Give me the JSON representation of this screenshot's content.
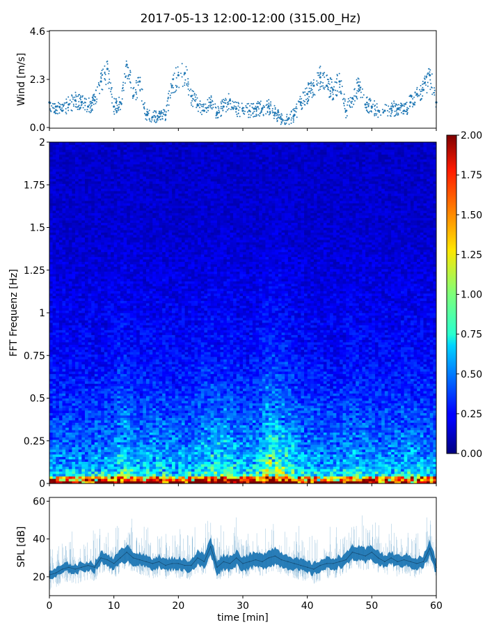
{
  "title": "2017-05-13 12:00-12:00 (315.00_Hz)",
  "chart_data": [
    {
      "id": "wind",
      "type": "scatter",
      "ylabel": "Wind [m/s]",
      "xlim": [
        0,
        60
      ],
      "ylim": [
        0,
        4.6
      ],
      "yticks": [
        0.0,
        2.3,
        4.6
      ],
      "ytick_labels": [
        "0.0",
        "2.3",
        "4.6"
      ],
      "color": "#1f77b4",
      "x": [
        0,
        1,
        2,
        3,
        4,
        5,
        6,
        7,
        8,
        9,
        10,
        11,
        12,
        13,
        14,
        15,
        16,
        17,
        18,
        19,
        20,
        21,
        22,
        23,
        24,
        25,
        26,
        27,
        28,
        29,
        30,
        31,
        32,
        33,
        34,
        35,
        36,
        37,
        38,
        39,
        40,
        41,
        42,
        43,
        44,
        45,
        46,
        47,
        48,
        49,
        50,
        51,
        52,
        53,
        54,
        55,
        56,
        57,
        58,
        59,
        60
      ],
      "y": [
        1.2,
        1.0,
        0.8,
        1.1,
        1.3,
        1.2,
        1.0,
        1.3,
        2.2,
        2.8,
        1.0,
        1.2,
        3.0,
        1.5,
        2.2,
        0.6,
        0.5,
        0.5,
        0.6,
        2.0,
        2.5,
        2.6,
        1.5,
        1.1,
        0.8,
        1.2,
        0.7,
        1.0,
        1.3,
        0.9,
        0.8,
        0.8,
        0.9,
        0.9,
        1.0,
        0.7,
        0.4,
        0.4,
        0.6,
        1.2,
        1.6,
        2.0,
        2.4,
        2.0,
        1.8,
        2.2,
        0.8,
        1.4,
        2.0,
        1.1,
        1.0,
        0.8,
        0.8,
        0.9,
        0.9,
        0.8,
        1.2,
        1.6,
        1.8,
        2.5,
        1.2
      ]
    },
    {
      "id": "spectrogram",
      "type": "heatmap",
      "ylabel": "FFT Frequenz [Hz]",
      "xlim": [
        0,
        60
      ],
      "ylim": [
        0,
        2
      ],
      "yticks": [
        0,
        0.25,
        0.5,
        0.75,
        1,
        1.25,
        1.5,
        1.75,
        2
      ],
      "ytick_labels": [
        "0",
        "0.25",
        "0.5",
        "0.75",
        "1",
        "1.25",
        "1.5",
        "1.75",
        "2"
      ],
      "colormap": "jet",
      "clim": [
        0,
        2
      ],
      "colorbar_ticks": [
        "0.00",
        "0.25",
        "0.50",
        "0.75",
        "1.00",
        "1.25",
        "1.50",
        "1.75",
        "2.00"
      ],
      "time_activity": [
        [
          0,
          0.15
        ],
        [
          2,
          0.2
        ],
        [
          5,
          0.15
        ],
        [
          8,
          0.25
        ],
        [
          10,
          0.2
        ],
        [
          11,
          0.55
        ],
        [
          12,
          0.5
        ],
        [
          13,
          0.3
        ],
        [
          15,
          0.3
        ],
        [
          17,
          0.35
        ],
        [
          19,
          0.25
        ],
        [
          22,
          0.25
        ],
        [
          24,
          0.45
        ],
        [
          25,
          0.5
        ],
        [
          27,
          0.55
        ],
        [
          29,
          0.35
        ],
        [
          31,
          0.3
        ],
        [
          33,
          0.55
        ],
        [
          34,
          0.85
        ],
        [
          35,
          0.8
        ],
        [
          36,
          0.7
        ],
        [
          37,
          0.55
        ],
        [
          39,
          0.3
        ],
        [
          41,
          0.25
        ],
        [
          44,
          0.2
        ],
        [
          47,
          0.3
        ],
        [
          50,
          0.25
        ],
        [
          53,
          0.2
        ],
        [
          55,
          0.3
        ],
        [
          57,
          0.25
        ],
        [
          60,
          0.2
        ]
      ],
      "floor_by_freq_hz": [
        [
          0,
          1.6
        ],
        [
          0.02,
          1.0
        ],
        [
          0.05,
          0.6
        ],
        [
          0.1,
          0.45
        ],
        [
          0.25,
          0.35
        ],
        [
          0.5,
          0.28
        ],
        [
          0.75,
          0.22
        ],
        [
          1,
          0.2
        ],
        [
          1.5,
          0.15
        ],
        [
          2,
          0.14
        ]
      ]
    },
    {
      "id": "spl",
      "type": "area",
      "ylabel": "SPL [dB]",
      "xlabel": "time [min]",
      "xlim": [
        0,
        60
      ],
      "ylim": [
        10,
        62
      ],
      "yticks": [
        20,
        40,
        60
      ],
      "ytick_labels": [
        "20",
        "40",
        "60"
      ],
      "xticks": [
        0,
        10,
        20,
        30,
        40,
        50,
        60
      ],
      "xtick_labels": [
        "0",
        "10",
        "20",
        "30",
        "40",
        "50",
        "60"
      ],
      "color": "#1f77b4",
      "x": [
        0,
        1,
        2,
        3,
        4,
        5,
        6,
        7,
        8,
        9,
        10,
        11,
        12,
        13,
        14,
        15,
        16,
        17,
        18,
        19,
        20,
        21,
        22,
        23,
        24,
        25,
        26,
        27,
        28,
        29,
        30,
        31,
        32,
        33,
        34,
        35,
        36,
        37,
        38,
        39,
        40,
        41,
        42,
        43,
        44,
        45,
        46,
        47,
        48,
        49,
        50,
        51,
        52,
        53,
        54,
        55,
        56,
        57,
        58,
        59,
        60
      ],
      "y": [
        21,
        22,
        24,
        25,
        24,
        25,
        26,
        25,
        30,
        29,
        27,
        30,
        33,
        30,
        29,
        28,
        27,
        28,
        26,
        27,
        27,
        26,
        26,
        30,
        28,
        36,
        25,
        28,
        27,
        30,
        27,
        28,
        29,
        28,
        30,
        31,
        29,
        28,
        27,
        26,
        25,
        24,
        26,
        27,
        27,
        28,
        29,
        33,
        32,
        31,
        33,
        30,
        28,
        30,
        28,
        29,
        28,
        27,
        28,
        35,
        25
      ],
      "band": [
        3,
        3,
        3,
        3,
        3,
        3,
        3,
        3,
        4,
        4,
        4,
        5,
        6,
        5,
        4,
        4,
        4,
        4,
        4,
        4,
        4,
        4,
        4,
        5,
        5,
        6,
        5,
        5,
        5,
        5,
        5,
        5,
        5,
        5,
        6,
        6,
        5,
        5,
        4,
        4,
        4,
        4,
        4,
        4,
        4,
        4,
        4,
        5,
        5,
        5,
        5,
        5,
        4,
        4,
        4,
        4,
        4,
        4,
        4,
        5,
        5
      ]
    }
  ]
}
